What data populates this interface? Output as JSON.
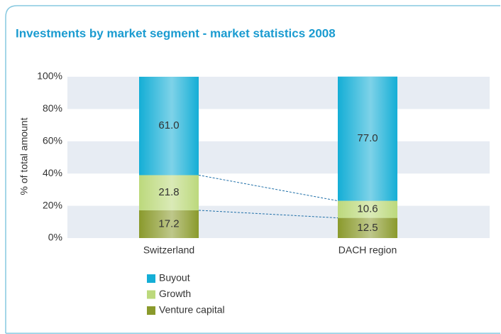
{
  "chart_data": {
    "type": "stacked_bar",
    "title": "Investments by market segment - market statistics 2008",
    "y_label": "% of total amount",
    "categories": [
      "Switzerland",
      "DACH region"
    ],
    "series": [
      {
        "name": "Venture capital",
        "color": "#8a9a2c",
        "values": [
          17.2,
          12.5
        ]
      },
      {
        "name": "Growth",
        "color": "#bcd97c",
        "values": [
          21.8,
          10.6
        ]
      },
      {
        "name": "Buyout",
        "color": "#14aed6",
        "values": [
          61.0,
          77.0
        ],
        "value_labels": [
          "61.0",
          "77.0"
        ]
      }
    ],
    "ylim": [
      0,
      100
    ],
    "yticks": [
      {
        "value": 0,
        "label": "0%"
      },
      {
        "value": 20,
        "label": "20%"
      },
      {
        "value": 40,
        "label": "40%"
      },
      {
        "value": 60,
        "label": "60%"
      },
      {
        "value": 80,
        "label": "80%"
      },
      {
        "value": 100,
        "label": "100%"
      }
    ],
    "grid": true
  }
}
